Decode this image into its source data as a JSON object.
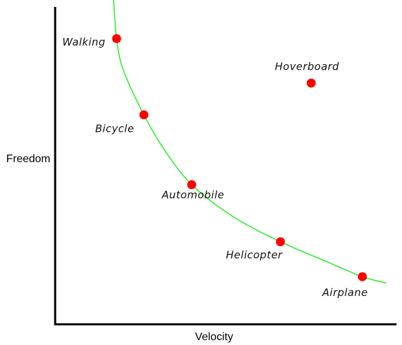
{
  "chart_data": {
    "type": "scatter",
    "title": "",
    "xlabel": "Velocity",
    "ylabel": "Freedom",
    "xlim": [
      0,
      10
    ],
    "ylim": [
      0,
      10
    ],
    "grid": false,
    "legend": "none",
    "point_color": "#ff0000",
    "curve_color": "#33ee33",
    "axis_color": "#000000",
    "points": [
      {
        "label": "Walking",
        "x": 1.8,
        "y": 9.0
      },
      {
        "label": "Bicycle",
        "x": 2.6,
        "y": 6.6
      },
      {
        "label": "Automobile",
        "x": 4.0,
        "y": 4.4
      },
      {
        "label": "Helicopter",
        "x": 6.6,
        "y": 2.6
      },
      {
        "label": "Airplane",
        "x": 9.0,
        "y": 1.5
      },
      {
        "label": "Hoverboard",
        "x": 7.5,
        "y": 7.6
      }
    ],
    "curve": {
      "points": [
        [
          1.7,
          10.4
        ],
        [
          1.8,
          9.0
        ],
        [
          2.0,
          8.0
        ],
        [
          2.6,
          6.6
        ],
        [
          3.2,
          5.5
        ],
        [
          4.0,
          4.4
        ],
        [
          5.2,
          3.4
        ],
        [
          6.6,
          2.6
        ],
        [
          7.9,
          2.0
        ],
        [
          9.0,
          1.5
        ],
        [
          9.7,
          1.3
        ]
      ]
    }
  }
}
